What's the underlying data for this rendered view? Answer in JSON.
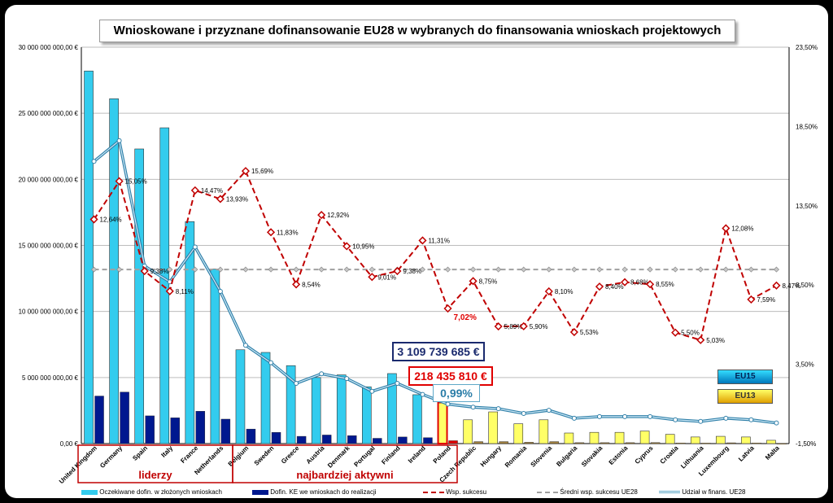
{
  "chart_data": {
    "type": "bar+line",
    "title": "Wnioskowane i przyznane dofinansowanie EU28 w wybranych do finansowania wnioskach projektowych",
    "categories": [
      "United Kingdom",
      "Germany",
      "Spain",
      "Italy",
      "France",
      "Netherlands",
      "Belgium",
      "Sweden",
      "Greece",
      "Austria",
      "Denmark",
      "Portugal",
      "Finland",
      "Ireland",
      "Poland",
      "Czech Republic",
      "Hungary",
      "Romania",
      "Slovenia",
      "Bulgaria",
      "Slovakia",
      "Estonia",
      "Cyprus",
      "Croatia",
      "Lithuania",
      "Luxembourg",
      "Latvia",
      "Malta"
    ],
    "left_axis": {
      "ticks": [
        "0,00 €",
        "5 000 000 000,00 €",
        "10 000 000 000,00 €",
        "15 000 000 000,00 €",
        "20 000 000 000,00 €",
        "25 000 000 000,00 €",
        "30 000 000 000,00 €"
      ],
      "min": 0,
      "max": 30000000000
    },
    "right_axis": {
      "ticks": [
        "-1,50%",
        "3,50%",
        "8,50%",
        "13,50%",
        "18,50%",
        "23,50%"
      ],
      "min": -1.5,
      "max": 23.5
    },
    "series": [
      {
        "name": "Oczekiwane dofin. w złożonych wnioskach",
        "kind": "bar",
        "axis": "left",
        "values": [
          28200000000,
          26100000000,
          22300000000,
          23900000000,
          16800000000,
          13200000000,
          7100000000,
          6900000000,
          5900000000,
          5000000000,
          5200000000,
          4300000000,
          5300000000,
          3700000000,
          3109739685,
          1800000000,
          2400000000,
          1500000000,
          1800000000,
          800000000,
          850000000,
          850000000,
          950000000,
          700000000,
          500000000,
          550000000,
          500000000,
          250000000
        ]
      },
      {
        "name": "Dofin. KE we wnioskach do realizacji",
        "kind": "bar",
        "axis": "left",
        "values": [
          3600000000,
          3900000000,
          2100000000,
          1950000000,
          2450000000,
          1850000000,
          1100000000,
          850000000,
          550000000,
          650000000,
          600000000,
          400000000,
          500000000,
          450000000,
          218435810,
          150000000,
          150000000,
          100000000,
          150000000,
          70000000,
          70000000,
          70000000,
          80000000,
          50000000,
          40000000,
          60000000,
          50000000,
          20000000
        ]
      },
      {
        "name": "Wsp. sukcesu",
        "kind": "line",
        "axis": "right",
        "values": [
          12.64,
          15.05,
          9.38,
          8.11,
          14.47,
          13.93,
          15.69,
          11.83,
          8.54,
          12.92,
          10.95,
          9.01,
          9.38,
          11.31,
          7.02,
          8.75,
          5.89,
          5.9,
          8.1,
          5.53,
          8.4,
          8.68,
          8.55,
          5.5,
          5.03,
          12.08,
          7.59,
          8.47
        ],
        "labels": [
          "12,64%",
          "15,05%",
          "9,38%",
          "8,11%",
          "14,47%",
          "13,93%",
          "15,69%",
          "11,83%",
          "8,54%",
          "12,92%",
          "10,95%",
          "9,01%",
          "9,38%",
          "11,31%",
          "7,02%",
          "8,75%",
          "5,89%",
          "5,90%",
          "8,10%",
          "5,53%",
          "8,40%",
          "8,68%",
          "8,55%",
          "5,50%",
          "5,03%",
          "12,08%",
          "7,59%",
          "8,47%"
        ]
      },
      {
        "name": "Średni wsp. sukcesu UE28",
        "kind": "line",
        "axis": "right",
        "values": [
          9.48,
          9.48,
          9.48,
          9.48,
          9.48,
          9.48,
          9.48,
          9.48,
          9.48,
          9.48,
          9.48,
          9.48,
          9.48,
          9.48,
          9.48,
          9.48,
          9.48,
          9.48,
          9.48,
          9.48,
          9.48,
          9.48,
          9.48,
          9.48,
          9.48,
          9.48,
          9.48,
          9.48
        ]
      },
      {
        "name": "Udział w finans. UE28",
        "kind": "line",
        "axis": "right",
        "values": [
          16.3,
          17.6,
          9.7,
          8.7,
          10.9,
          8.1,
          4.7,
          3.6,
          2.3,
          2.9,
          2.6,
          1.8,
          2.3,
          1.6,
          0.99,
          0.8,
          0.7,
          0.4,
          0.6,
          0.1,
          0.2,
          0.2,
          0.2,
          0.0,
          -0.1,
          0.1,
          0.0,
          -0.2
        ]
      }
    ],
    "legend_position": "bottom",
    "grid": true
  },
  "callouts": {
    "total_requested": "3 109 739 685 €",
    "total_granted": "218 435 810 €",
    "share": "0,99%"
  },
  "groups": {
    "leaders": "liderzy",
    "most_active": "najbardziej aktywni"
  },
  "legend_boxes": {
    "eu15": "EU15",
    "eu13": "EU13"
  },
  "colors": {
    "bar_requested": "#33ccee",
    "bar_granted": "#00188f",
    "bar_eu13": "#ffff66",
    "bar_eu13_granted": "#a08040",
    "success_line": "#c00000",
    "avg_line": "#a0a0a0",
    "share_line": "#5fa8c8",
    "highlight": "#e00000"
  }
}
